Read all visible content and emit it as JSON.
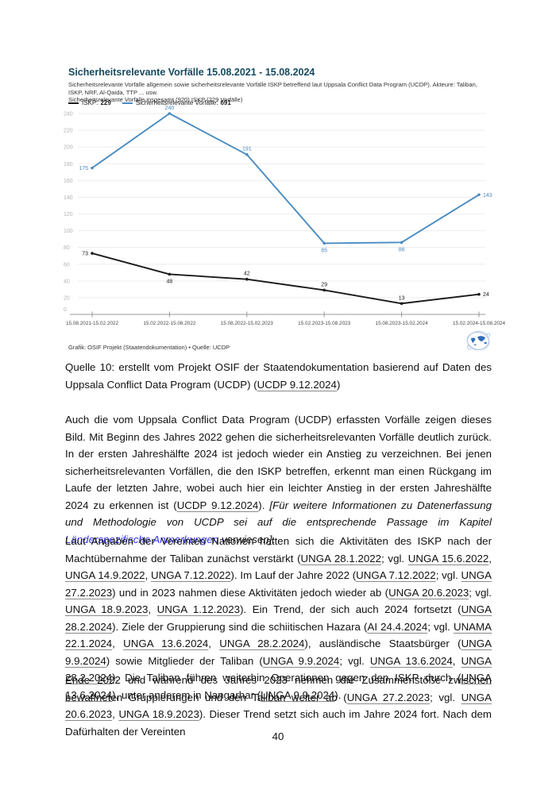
{
  "document": {
    "page_number": "40"
  },
  "figure": {
    "title": "Sicherheitsrelevante Vorfälle 15.08.2021 - 15.08.2024",
    "subtitle_line1": "Sicherheitsrelevante Vorfälle allgemein sowie sicherheitsrelevante Vorfälle ISKP betreffend laut Uppsala Conflict Data Program (UCDP). Akteure: Taliban, ISKP, NRF, Al-Qaida, TTP ... usw.",
    "subtitle_line2": "Sicherheitsrelevante Vorfälle insgesamt (920) ISKP (229 Vorfälle)",
    "legend": [
      {
        "label": "ISKP:",
        "value": "229",
        "color": "#1a1a1a"
      },
      {
        "label": "Sicherheitsrelevante Vorfälle:",
        "value": "691",
        "color": "#4a8bc2"
      }
    ],
    "footer": "Grafik: OSIF Projekt (Staatendokumentation)  • Quelle: UCDP",
    "logo_icon": "globe-sketch-icon",
    "colors": {
      "title": "#164a5e",
      "grid": "#ededed",
      "axis": "#999999",
      "ytick_label": "#b3b3b3",
      "xtick_label": "#474747"
    }
  },
  "chart_data": {
    "type": "line",
    "categories": [
      "15.08.2021-15.02.2022",
      "15.02.2022-15.08.2022",
      "15.08.2022-15.02.2023",
      "15.02.2023-15.08.2023",
      "15.08.2023-15.02.2024",
      "15.02.2024-15.08.2024"
    ],
    "series": [
      {
        "name": "ISKP: 229",
        "color": "#1a1a1a",
        "values": [
          73,
          48,
          42,
          29,
          13,
          24
        ],
        "label_positions": [
          "left",
          "bottom",
          "top",
          "top",
          "top",
          "right"
        ]
      },
      {
        "name": "Sicherheitsrelevante Vorfälle: 691",
        "color": "#4a8bc2",
        "values": [
          175,
          240,
          191,
          85,
          86,
          143
        ],
        "label_positions": [
          "left",
          "top",
          "top",
          "bottom",
          "bottom",
          "right"
        ]
      }
    ],
    "title": "Sicherheitsrelevante Vorfälle 15.08.2021 - 15.08.2024",
    "xlabel": "",
    "ylabel": "",
    "ylim": [
      0,
      240
    ],
    "ytick_step": 20,
    "grid": true,
    "legend_position": "top-left"
  },
  "caption": {
    "segments": [
      {
        "t": "Quelle 10: erstellt vom Projekt OSIF der Staatendokumentation basierend auf Daten des Uppsala Conflict Data Program (UCDP) (",
        "s": "plain"
      },
      {
        "t": "UCDP 9.12.2024",
        "s": "link"
      },
      {
        "t": ")",
        "s": "plain"
      }
    ]
  },
  "paragraphs": [
    {
      "segments": [
        {
          "t": "Auch die vom Uppsala Conflict Data Program (UCDP) erfassten Vorfälle zeigen dieses Bild. Mit Beginn des Jahres 2022 gehen die sicherheitsrelevanten Vorfälle deutlich zurück. In der ersten Jahreshälfte 2024 ist jedoch wieder ein Anstieg zu verzeichnen. Bei jenen sicherheitsrelevanten Vorfällen, die den ISKP betreffen, erkennt man einen Rückgang im Laufe der letzten Jahre, wobei auch hier ein leichter Anstieg in der ersten Jahreshälfte 2024 zu erkennen ist (",
          "s": "plain"
        },
        {
          "t": "UCDP 9.12.2024",
          "s": "link"
        },
        {
          "t": "). ",
          "s": "plain"
        },
        {
          "t": "[Für weitere Informationen zu Datenerfassung und Methodologie von UCDP sei auf die entsprechende Passage im Kapitel ",
          "s": "italic"
        },
        {
          "t": "Länderspezifische Anmerkungen",
          "s": "bluelink"
        },
        {
          "t": " verwiesen]",
          "s": "italic"
        },
        {
          "t": ":",
          "s": "plain"
        }
      ]
    },
    {
      "segments": [
        {
          "t": "Laut Angaben der Vereinten Nationen hatten sich die Aktivitäten des ISKP nach der Machtübernahme der Taliban zunächst verstärkt (",
          "s": "plain"
        },
        {
          "t": "UNGA 28.1.2022",
          "s": "link"
        },
        {
          "t": "; vgl. ",
          "s": "plain"
        },
        {
          "t": "UNGA 15.6.2022",
          "s": "link"
        },
        {
          "t": ", ",
          "s": "plain"
        },
        {
          "t": "UNGA 14.9.2022",
          "s": "link"
        },
        {
          "t": ", ",
          "s": "plain"
        },
        {
          "t": "UNGA 7.12.2022",
          "s": "link"
        },
        {
          "t": "). Im Lauf der Jahre 2022 (",
          "s": "plain"
        },
        {
          "t": "UNGA 7.12.2022",
          "s": "link"
        },
        {
          "t": "; vgl. ",
          "s": "plain"
        },
        {
          "t": "UNGA 27.2.2023",
          "s": "link"
        },
        {
          "t": ") und in 2023 nahmen diese Aktivitäten jedoch wieder ab (",
          "s": "plain"
        },
        {
          "t": "UNGA 20.6.2023",
          "s": "link"
        },
        {
          "t": "; vgl. ",
          "s": "plain"
        },
        {
          "t": "UNGA 18.9.2023",
          "s": "link"
        },
        {
          "t": ", ",
          "s": "plain"
        },
        {
          "t": "UNGA 1.12.2023",
          "s": "link"
        },
        {
          "t": "). Ein Trend, der sich auch 2024 fortsetzt (",
          "s": "plain"
        },
        {
          "t": "UNGA 28.2.2024",
          "s": "link"
        },
        {
          "t": "). Ziele der Gruppierung sind die schiitischen Hazara (",
          "s": "plain"
        },
        {
          "t": "AI 24.4.2024",
          "s": "link"
        },
        {
          "t": "; vgl. ",
          "s": "plain"
        },
        {
          "t": "UNAMA 22.1.2024",
          "s": "link"
        },
        {
          "t": ", ",
          "s": "plain"
        },
        {
          "t": "UNGA 13.6.2024",
          "s": "link"
        },
        {
          "t": ", ",
          "s": "plain"
        },
        {
          "t": "UNGA 28.2.2024",
          "s": "link"
        },
        {
          "t": "), ausländische Staatsbürger (",
          "s": "plain"
        },
        {
          "t": "UNGA 9.9.2024",
          "s": "link"
        },
        {
          "t": ") sowie Mitglieder der Taliban (",
          "s": "plain"
        },
        {
          "t": "UNGA 9.9.2024",
          "s": "link"
        },
        {
          "t": "; vgl. ",
          "s": "plain"
        },
        {
          "t": "UNGA 13.6.2024",
          "s": "link"
        },
        {
          "t": ", ",
          "s": "plain"
        },
        {
          "t": "UNGA 28.2.2024",
          "s": "link"
        },
        {
          "t": "). Die Taliban führen weiterhin Operationen gegen den ISKP durch (",
          "s": "plain"
        },
        {
          "t": "UNGA 13.6.2024",
          "s": "link"
        },
        {
          "t": "), unter anderem in Nangarhar (",
          "s": "plain"
        },
        {
          "t": "UNGA 9.9.2024",
          "s": "link"
        },
        {
          "t": ").",
          "s": "plain"
        }
      ]
    },
    {
      "segments": [
        {
          "t": "Ende 2022 und während des Jahres 2023 nehmen die Zusammenstöße zwischen bewaffneten Gruppierungen und den Taliban weiter ab (",
          "s": "plain"
        },
        {
          "t": "UNGA 27.2.2023",
          "s": "link"
        },
        {
          "t": "; vgl. ",
          "s": "plain"
        },
        {
          "t": "UNGA 20.6.2023",
          "s": "link"
        },
        {
          "t": ", ",
          "s": "plain"
        },
        {
          "t": "UNGA 18.9.2023",
          "s": "link"
        },
        {
          "t": "). Dieser Trend setzt sich auch im Jahre 2024 fort. Nach dem Dafürhalten der Vereinten",
          "s": "plain"
        }
      ]
    }
  ]
}
